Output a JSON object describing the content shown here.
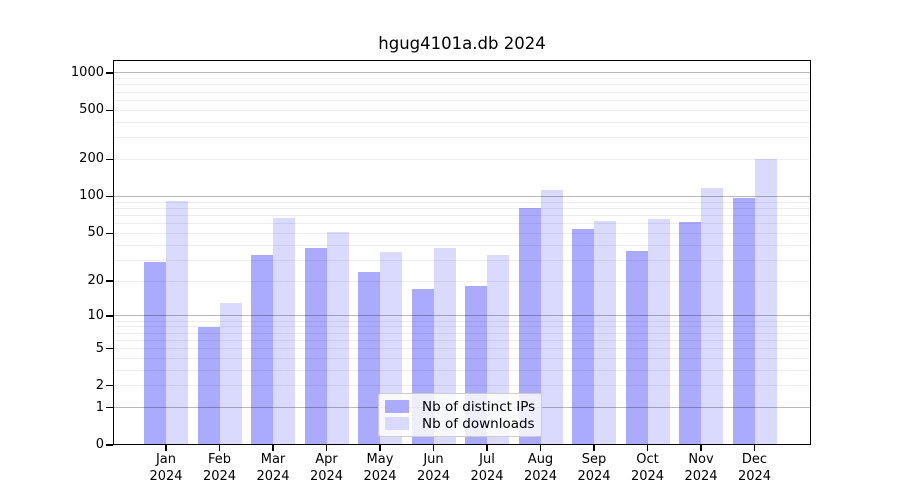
{
  "chart_data": {
    "type": "bar",
    "title": "hgug4101a.db 2024",
    "categories": [
      "Jan 2024",
      "Feb 2024",
      "Mar 2024",
      "Apr 2024",
      "May 2024",
      "Jun 2024",
      "Jul 2024",
      "Aug 2024",
      "Sep 2024",
      "Oct 2024",
      "Nov 2024",
      "Dec 2024"
    ],
    "series": [
      {
        "name": "Nb of distinct IPs",
        "color": "#aaaaff",
        "values": [
          29,
          8,
          33,
          38,
          24,
          17,
          18,
          80,
          54,
          36,
          62,
          97
        ]
      },
      {
        "name": "Nb of downloads",
        "color": "#dadaff",
        "values": [
          92,
          13,
          67,
          51,
          35,
          38,
          33,
          112,
          63,
          66,
          118,
          200
        ]
      }
    ],
    "y_axis": {
      "scale": "log(1+y)",
      "tick_values": [
        0,
        1,
        2,
        5,
        10,
        20,
        50,
        100,
        200,
        500,
        1000
      ],
      "major_grid_values": [
        1,
        10,
        100,
        1000
      ],
      "grid_over_bars": true
    },
    "legend": {
      "position": "inside-bottom-center"
    },
    "colors": {
      "axis": "#000000",
      "major_grid": "rgba(0,0,0,0.27)",
      "minor_grid": "rgba(0,0,0,0.07)",
      "background": "#ffffff"
    }
  }
}
